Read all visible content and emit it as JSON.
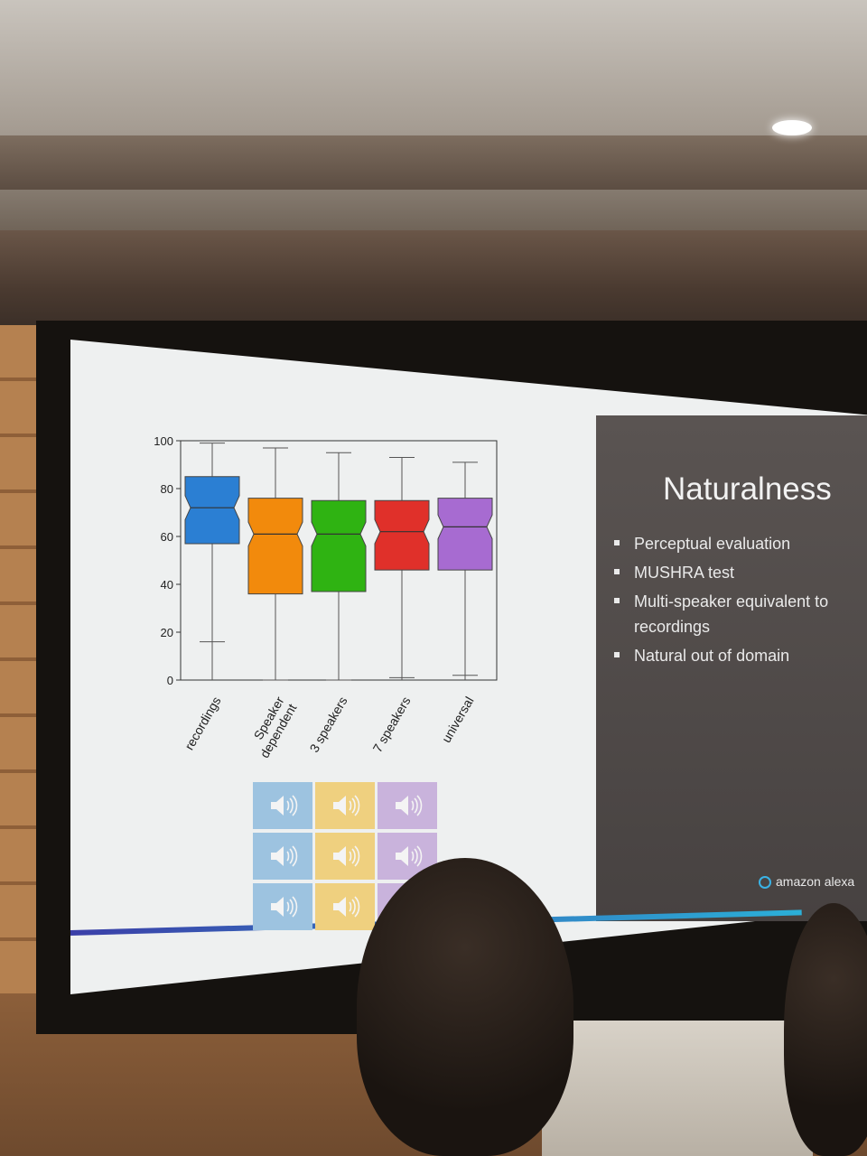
{
  "slide": {
    "title": "Naturalness",
    "bullets": [
      "Perceptual evaluation",
      "MUSHRA test",
      "Multi-speaker equivalent to\nrecordings",
      "Natural out of domain"
    ],
    "brand": "amazon alexa"
  },
  "chart_data": {
    "type": "box",
    "ylim": [
      0,
      100
    ],
    "yticks": [
      0,
      20,
      40,
      60,
      80,
      100
    ],
    "categories": [
      "recordings",
      "Speaker\ndependent",
      "3 speakers",
      "7 speakers",
      "universal"
    ],
    "colors": [
      "#2b7fd3",
      "#f28a0c",
      "#2fb312",
      "#e0302a",
      "#a76bd1"
    ],
    "boxes": [
      {
        "min": 0,
        "q1": 57,
        "median": 72,
        "q3": 85,
        "max": 99,
        "lower_whisker": 16
      },
      {
        "min": 0,
        "q1": 36,
        "median": 61,
        "q3": 76,
        "max": 97,
        "lower_whisker": 0
      },
      {
        "min": 0,
        "q1": 37,
        "median": 61,
        "q3": 75,
        "max": 95,
        "lower_whisker": 0
      },
      {
        "min": 0,
        "q1": 46,
        "median": 62,
        "q3": 75,
        "max": 93,
        "lower_whisker": 1
      },
      {
        "min": 0,
        "q1": 46,
        "median": 64,
        "q3": 76,
        "max": 91,
        "lower_whisker": 2
      }
    ]
  },
  "audio_grid": {
    "colors": [
      "#9dc3e0",
      "#efd07f",
      "#c9b3dc"
    ],
    "rows": 3,
    "cols": 3,
    "icon": "speaker-icon"
  }
}
